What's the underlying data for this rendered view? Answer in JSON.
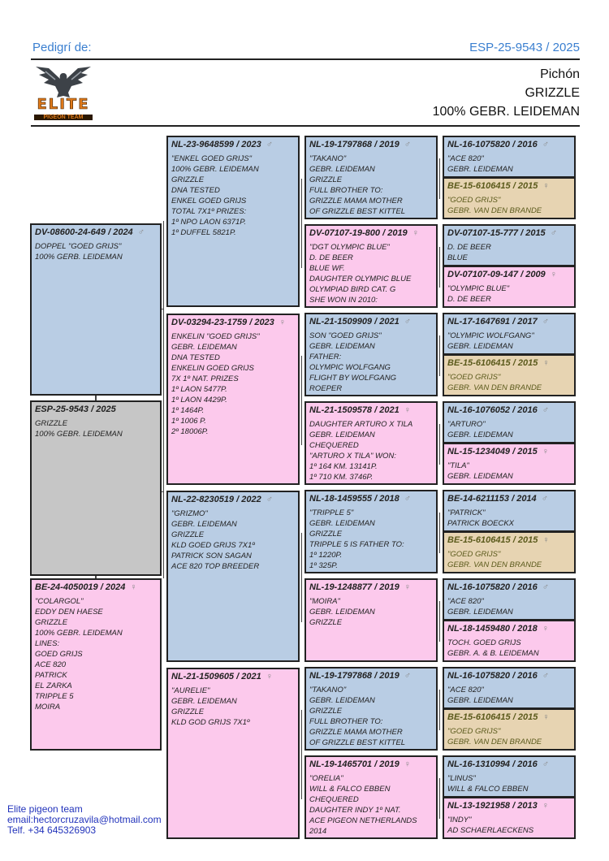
{
  "header": {
    "label": "Pedigrí de:",
    "ring": "ESP-25-9543 / 2025",
    "info": [
      "Pichón",
      "GRIZZLE",
      "100% GEBR. LEIDEMAN"
    ]
  },
  "logo": {
    "text": "ELITE",
    "subtext": "PIGEON TEAM",
    "icon": "pigeon-icon"
  },
  "colors": {
    "male": "#b9cde4",
    "female": "#fcc9ec",
    "subject": "#c6c6c6",
    "highlight": "#e7d4b2",
    "accent": "#3a7fd0"
  },
  "birds": [
    {
      "role": "subject",
      "ring": "ESP-25-9543 / 2025",
      "sex": "",
      "color": "gray",
      "lines": [
        "GRIZZLE",
        "100% GEBR. LEIDEMAN"
      ]
    },
    {
      "role": "father",
      "ring": "DV-08600-24-649 / 2024",
      "sex": "♂",
      "color": "blue",
      "lines": [
        "DOPPEL \"GOED GRIJS\"",
        "100% GERB. LEIDEMAN"
      ]
    },
    {
      "role": "mother",
      "ring": "BE-24-4050019 / 2024",
      "sex": "♀",
      "color": "pink",
      "lines": [
        "\"COLARGOL\"",
        "EDDY DEN HAESE",
        "GRIZZLE",
        "100% GEBR. LEIDEMAN",
        "LINES:",
        "GOED GRIJS",
        "ACE 820",
        "PATRICK",
        "EL ZARKA",
        "TRIPPLE 5",
        "MOIRA"
      ]
    },
    {
      "role": "ff",
      "ring": "NL-23-9648599 / 2023",
      "sex": "♂",
      "color": "blue",
      "lines": [
        "\"ENKEL GOED GRIJS\"",
        "100% GEBR. LEIDEMAN",
        "GRIZZLE",
        "DNA TESTED",
        "ENKEL GOED GRIJS",
        "TOTAL 7X1º PRIZES:",
        "1º NPO LAON 6371P.",
        "1º DUFFEL 5821P."
      ]
    },
    {
      "role": "fm",
      "ring": "DV-03294-23-1759 / 2023",
      "sex": "♀",
      "color": "pink",
      "lines": [
        "ENKELIN \"GOED GRIJS\"",
        "GEBR. LEIDEMAN",
        "DNA TESTED",
        "ENKELIN GOED GRIJS",
        "7X 1º NAT. PRIZES",
        "1º LAON 5477P.",
        "1º LAON 4429P.",
        "1º 1464P.",
        "1º 1006 P.",
        "2º 18006P."
      ]
    },
    {
      "role": "mf",
      "ring": "NL-22-8230519 / 2022",
      "sex": "♂",
      "color": "blue",
      "lines": [
        "\"GRIZMO\"",
        "GEBR. LEIDEMAN",
        "GRIZZLE",
        "KLD GOED GRIJS 7X1º",
        "PATRICK SON SAGAN",
        "ACE 820 TOP BREEDER"
      ]
    },
    {
      "role": "mm",
      "ring": "NL-21-1509605 / 2021",
      "sex": "♀",
      "color": "pink",
      "lines": [
        "\"AURELIE\"",
        "GEBR. LEIDEMAN",
        "GRIZZLE",
        "KLD GOD GRIJS 7X1º"
      ]
    },
    {
      "role": "fff",
      "ring": "NL-19-1797868 / 2019",
      "sex": "♂",
      "color": "blue",
      "lines": [
        "\"TAKANO\"",
        "GEBR. LEIDEMAN",
        "GRIZZLE",
        "FULL BROTHER TO:",
        "GRIZZLE MAMA MOTHER",
        "OF GRIZZLE BEST KITTEL"
      ]
    },
    {
      "role": "ffm",
      "ring": "DV-07107-19-800 / 2019",
      "sex": "♀",
      "color": "pink",
      "lines": [
        "\"DGT OLYMPIC BLUE\"",
        "D. DE BEER",
        "BLUE WF.",
        "DAUGHTER OLYMPIC BLUE",
        "OLYMPIAD BIRD CAT. G",
        "SHE WON IN 2010:"
      ]
    },
    {
      "role": "fmf",
      "ring": "NL-21-1509909 / 2021",
      "sex": "♂",
      "color": "blue",
      "lines": [
        "SON \"GOED GRIJS\"",
        "GEBR. LEIDEMAN",
        "FATHER:",
        "OLYMPIC WOLFGANG",
        "FLIGHT BY WOLFGANG",
        "ROEPER"
      ]
    },
    {
      "role": "fmm",
      "ring": "NL-21-1509578 / 2021",
      "sex": "♀",
      "color": "pink",
      "lines": [
        "DAUGHTER ARTURO X TILA",
        "GEBR. LEIDEMAN",
        "CHEQUERED",
        "\"ARTURO X TILA\" WON:",
        "1º 164 KM. 13141P.",
        "1º 710 KM. 3746P."
      ]
    },
    {
      "role": "mff",
      "ring": "NL-18-1459555 / 2018",
      "sex": "♂",
      "color": "blue",
      "lines": [
        "\"TRIPPLE 5\"",
        "GEBR. LEIDEMAN",
        "GRIZZLE",
        "TRIPPLE 5 IS FATHER TO:",
        "1º 1220P.",
        "1º 325P."
      ]
    },
    {
      "role": "mfm",
      "ring": "NL-19-1248877 / 2019",
      "sex": "♀",
      "color": "pink",
      "lines": [
        "\"MOIRA\"",
        "GEBR. LEIDEMAN",
        "GRIZZLE"
      ]
    },
    {
      "role": "mmf",
      "ring": "NL-19-1797868 / 2019",
      "sex": "♂",
      "color": "blue",
      "lines": [
        "\"TAKANO\"",
        "GEBR. LEIDEMAN",
        "GRIZZLE",
        "FULL BROTHER TO:",
        "GRIZZLE MAMA MOTHER",
        "OF GRIZZLE BEST KITTEL"
      ]
    },
    {
      "role": "mmm",
      "ring": "NL-19-1465701 / 2019",
      "sex": "♀",
      "color": "pink",
      "lines": [
        "\"ORELIA\"",
        "WILL & FALCO EBBEN",
        "CHEQUERED",
        "DAUGHTER INDY 1º NAT.",
        "ACE PIGEON NETHERLANDS",
        "2014"
      ]
    },
    {
      "role": "g4-1",
      "ring": "NL-16-1075820 / 2016",
      "sex": "♂",
      "color": "blue",
      "lines": [
        "\"ACE 820\"",
        "GEBR. LEIDEMAN"
      ]
    },
    {
      "role": "g4-2",
      "ring": "BE-15-6106415 / 2015",
      "sex": "♀",
      "color": "tan",
      "lines": [
        "\"GOED GRIJS\"",
        "GEBR. VAN DEN BRANDE"
      ]
    },
    {
      "role": "g4-3",
      "ring": "DV-07107-15-777 / 2015",
      "sex": "♂",
      "color": "blue",
      "lines": [
        "D. DE BEER",
        "BLUE"
      ]
    },
    {
      "role": "g4-4",
      "ring": "DV-07107-09-147 / 2009",
      "sex": "♀",
      "color": "pink",
      "lines": [
        "\"OLYMPIC BLUE\"",
        "D. DE BEER"
      ]
    },
    {
      "role": "g4-5",
      "ring": "NL-17-1647691 / 2017",
      "sex": "♂",
      "color": "blue",
      "lines": [
        "\"OLYMPIC WOLFGANG\"",
        "GEBR. LEIDEMAN"
      ]
    },
    {
      "role": "g4-6",
      "ring": "BE-15-6106415 / 2015",
      "sex": "♀",
      "color": "tan",
      "lines": [
        "\"GOED GRIJS\"",
        "GEBR. VAN DEN BRANDE"
      ]
    },
    {
      "role": "g4-7",
      "ring": "NL-16-1076052 / 2016",
      "sex": "♂",
      "color": "blue",
      "lines": [
        "\"ARTURO\"",
        "GEBR. LEIDEMAN"
      ]
    },
    {
      "role": "g4-8",
      "ring": "NL-15-1234049 / 2015",
      "sex": "♀",
      "color": "pink",
      "lines": [
        "\"TILA\"",
        "GEBR. LEIDEMAN"
      ]
    },
    {
      "role": "g4-9",
      "ring": "BE-14-6211153 / 2014",
      "sex": "♂",
      "color": "blue",
      "lines": [
        "\"PATRICK\"",
        "PATRICK BOECKX"
      ]
    },
    {
      "role": "g4-10",
      "ring": "BE-15-6106415 / 2015",
      "sex": "♀",
      "color": "tan",
      "lines": [
        "\"GOED GRIJS\"",
        "GEBR. VAN DEN BRANDE"
      ]
    },
    {
      "role": "g4-11",
      "ring": "NL-16-1075820 / 2016",
      "sex": "♂",
      "color": "blue",
      "lines": [
        "\"ACE 820\"",
        "GEBR. LEIDEMAN"
      ]
    },
    {
      "role": "g4-12",
      "ring": "NL-18-1459480 / 2018",
      "sex": "♀",
      "color": "pink",
      "lines": [
        "TOCH. GOED GRIJS",
        "GEBR. A. & B. LEIDEMAN"
      ]
    },
    {
      "role": "g4-13",
      "ring": "NL-16-1075820 / 2016",
      "sex": "♂",
      "color": "blue",
      "lines": [
        "\"ACE 820\"",
        "GEBR. LEIDEMAN"
      ]
    },
    {
      "role": "g4-14",
      "ring": "BE-15-6106415 / 2015",
      "sex": "♀",
      "color": "tan",
      "lines": [
        "\"GOED GRIJS\"",
        "GEBR. VAN DEN BRANDE"
      ]
    },
    {
      "role": "g4-15",
      "ring": "NL-16-1310994 / 2016",
      "sex": "♂",
      "color": "blue",
      "lines": [
        "\"LINUS\"",
        "WILL & FALCO EBBEN"
      ]
    },
    {
      "role": "g4-16",
      "ring": "NL-13-1921958 / 2013",
      "sex": "♀",
      "color": "pink",
      "lines": [
        "\"INDY\"",
        "AD SCHAERLAECKENS"
      ]
    }
  ],
  "footer": [
    "Elite pigeon team",
    "email:hectorcruzavila@hotmail.com",
    "Telf.  +34 645326903"
  ]
}
